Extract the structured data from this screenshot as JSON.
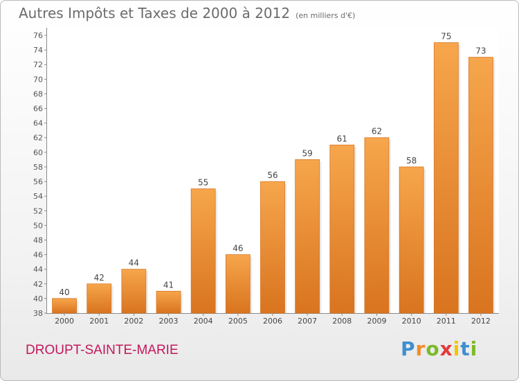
{
  "header": {
    "title": "Autres Impôts et Taxes de 2000 à 2012",
    "unit": "(en milliers d'€)"
  },
  "footer": {
    "place": "DROUPT-SAINTE-MARIE",
    "logo_letters": [
      {
        "ch": "P",
        "color": "#3f8fd0"
      },
      {
        "ch": "r",
        "color": "#f28c28"
      },
      {
        "ch": "o",
        "color": "#7cba2a"
      },
      {
        "ch": "x",
        "color": "#e23b3b"
      },
      {
        "ch": "i",
        "color": "#f2c500"
      },
      {
        "ch": "t",
        "color": "#3f8fd0"
      },
      {
        "ch": "i",
        "color": "#7cba2a"
      }
    ]
  },
  "chart_data": {
    "type": "bar",
    "categories": [
      "2000",
      "2001",
      "2002",
      "2003",
      "2004",
      "2005",
      "2006",
      "2007",
      "2008",
      "2009",
      "2010",
      "2011",
      "2012"
    ],
    "values": [
      40,
      42,
      44,
      41,
      55,
      46,
      56,
      59,
      61,
      62,
      58,
      75,
      73
    ],
    "ylim": [
      38,
      76
    ],
    "ytick_step": 2,
    "grid": false,
    "bar_color": "#ef8f35",
    "bar_color_light": "#f6a64c",
    "bar_color_dark": "#d9741f"
  }
}
